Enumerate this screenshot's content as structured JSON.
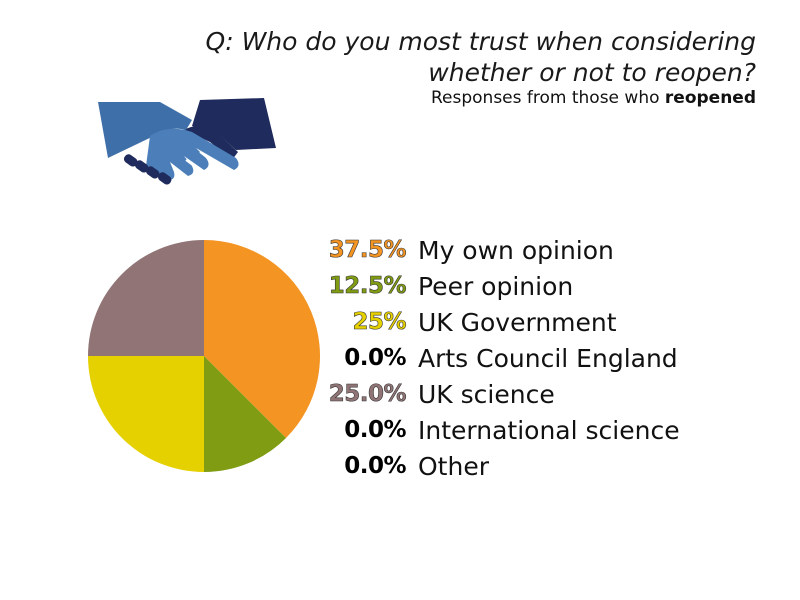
{
  "header": {
    "question_line1": "Q: Who do you most trust when considering",
    "question_line2": "whether or not to reopen?",
    "subtitle_prefix": "Responses from those who ",
    "subtitle_bold": "reopened"
  },
  "icon": "handshake-icon",
  "chart_data": {
    "type": "pie",
    "categories": [
      "My own opinion",
      "Peer opinion",
      "UK Government",
      "Arts Council England",
      "UK science",
      "International science",
      "Other"
    ],
    "values": [
      37.5,
      12.5,
      25,
      0.0,
      25.0,
      0.0,
      0.0
    ],
    "value_labels": [
      "37.5%",
      "12.5%",
      "25%",
      "0.0%",
      "25.0%",
      "0.0%",
      "0.0%"
    ],
    "colors": [
      "#f39423",
      "#7f9c12",
      "#e5d000",
      "#000000",
      "#917576",
      "#000000",
      "#000000"
    ],
    "start": "12 o'clock, clockwise",
    "legend_position": "right"
  }
}
